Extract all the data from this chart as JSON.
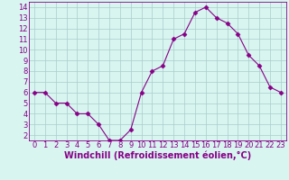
{
  "x": [
    0,
    1,
    2,
    3,
    4,
    5,
    6,
    7,
    8,
    9,
    10,
    11,
    12,
    13,
    14,
    15,
    16,
    17,
    18,
    19,
    20,
    21,
    22,
    23
  ],
  "y": [
    6,
    6,
    5,
    5,
    4,
    4,
    3,
    1.5,
    1.5,
    2.5,
    6,
    8,
    8.5,
    11,
    11.5,
    13.5,
    14,
    13,
    12.5,
    11.5,
    9.5,
    8.5,
    6.5,
    6
  ],
  "line_color": "#880088",
  "marker": "D",
  "marker_size": 2.5,
  "bg_color": "#d8f5f0",
  "grid_color": "#aacccc",
  "xlabel": "Windchill (Refroidissement éolien,°C)",
  "ylabel": "",
  "xlim": [
    -0.5,
    23.5
  ],
  "ylim": [
    1.5,
    14.5
  ],
  "yticks": [
    2,
    3,
    4,
    5,
    6,
    7,
    8,
    9,
    10,
    11,
    12,
    13,
    14
  ],
  "xticks": [
    0,
    1,
    2,
    3,
    4,
    5,
    6,
    7,
    8,
    9,
    10,
    11,
    12,
    13,
    14,
    15,
    16,
    17,
    18,
    19,
    20,
    21,
    22,
    23
  ],
  "tick_fontsize": 6,
  "label_fontsize": 7
}
